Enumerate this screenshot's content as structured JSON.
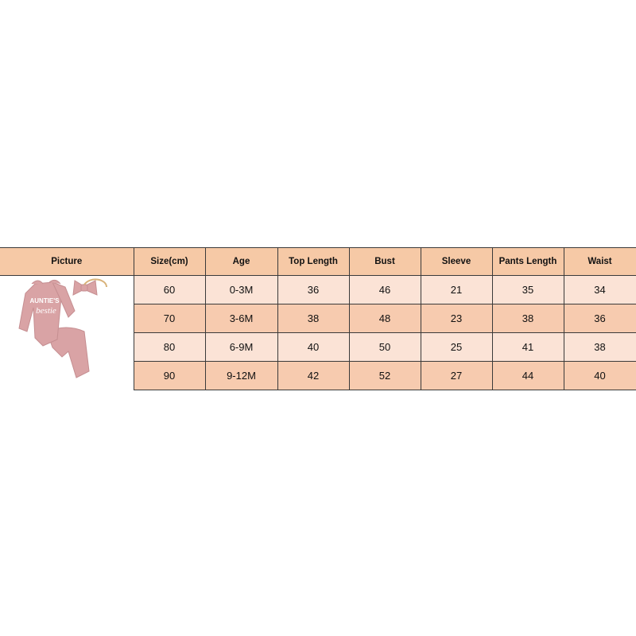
{
  "headers": [
    "Picture",
    "Size(cm)",
    "Age",
    "Top Length",
    "Bust",
    "Sleeve",
    "Pants Length",
    "Waist"
  ],
  "rows": [
    [
      "60",
      "0-3M",
      "36",
      "46",
      "21",
      "35",
      "34"
    ],
    [
      "70",
      "3-6M",
      "38",
      "48",
      "23",
      "38",
      "36"
    ],
    [
      "80",
      "6-9M",
      "40",
      "50",
      "25",
      "41",
      "38"
    ],
    [
      "90",
      "9-12M",
      "42",
      "52",
      "27",
      "44",
      "40"
    ]
  ],
  "product_image": {
    "print_line1": "AUNTIE'S",
    "print_line2": "bestie",
    "color": "#d9a3a5"
  },
  "colors": {
    "header": "#f6c9a6",
    "row_light": "#fbe3d6",
    "row_dark": "#f7cbaf"
  }
}
